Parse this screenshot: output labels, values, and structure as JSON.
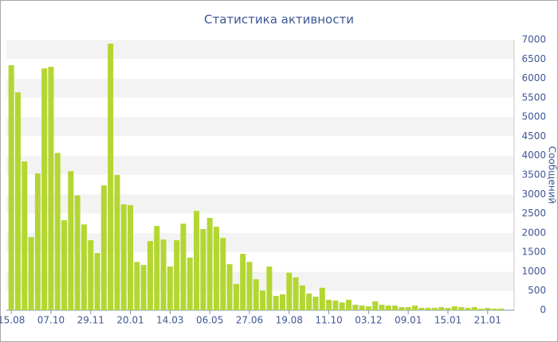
{
  "chart_data": {
    "type": "bar",
    "title": "Статистика активности",
    "y_label": "Сообщений",
    "categories": [
      "15.08",
      null,
      null,
      null,
      null,
      null,
      "07.10",
      null,
      null,
      null,
      null,
      null,
      "29.11",
      null,
      null,
      null,
      null,
      null,
      "20.01",
      null,
      null,
      null,
      null,
      null,
      "14.03",
      null,
      null,
      null,
      null,
      null,
      "06.05",
      null,
      null,
      null,
      null,
      null,
      "27.06",
      null,
      null,
      null,
      null,
      null,
      "19.08",
      null,
      null,
      null,
      null,
      null,
      "11.10",
      null,
      null,
      null,
      null,
      null,
      "03.12",
      null,
      null,
      null,
      null,
      null,
      "09.01",
      null,
      null,
      null,
      null,
      null,
      "15.01",
      null,
      null,
      null,
      null,
      null,
      "21.01",
      null,
      null
    ],
    "values": [
      6340,
      5640,
      3850,
      1890,
      3540,
      6260,
      6300,
      4070,
      2330,
      3600,
      2970,
      2220,
      1810,
      1480,
      3230,
      6900,
      3500,
      2740,
      2720,
      1250,
      1170,
      1790,
      2180,
      1830,
      1130,
      1810,
      2240,
      1360,
      2570,
      2100,
      2390,
      2160,
      1870,
      1190,
      680,
      1460,
      1250,
      800,
      510,
      1130,
      370,
      410,
      970,
      850,
      640,
      430,
      350,
      580,
      270,
      250,
      200,
      270,
      140,
      120,
      100,
      230,
      140,
      120,
      120,
      80,
      80,
      120,
      60,
      60,
      60,
      80,
      60,
      100,
      80,
      60,
      80,
      40,
      60,
      40,
      40
    ],
    "color": "#b4d633",
    "ylim": [
      0,
      7000
    ],
    "yticks": [
      0,
      500,
      1000,
      1500,
      2000,
      2500,
      3000,
      3500,
      4000,
      4500,
      5000,
      5500,
      6000,
      6500,
      7000
    ],
    "grid": true
  }
}
